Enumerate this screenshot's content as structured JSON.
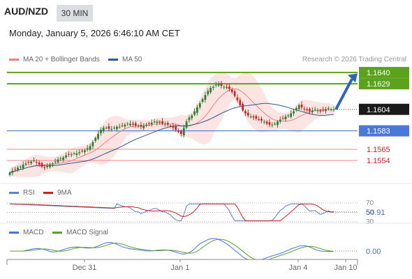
{
  "header": {
    "symbol": "AUD/NZD",
    "timeframe": "30 MIN",
    "datetime": "Monday, January 5, 2026 6:46:10 AM CET"
  },
  "legend": {
    "ma20_label": "MA 20 + Bollinger Bands",
    "ma50_label": "MA 50",
    "credit": "Research © 2026 Trading Central"
  },
  "colors": {
    "ma20": "#f08080",
    "ma50": "#2f5597",
    "band_fill": "#fbd9d6",
    "resistance": "#5aa31a",
    "pivot": "#4a78d8",
    "support": "#f08a8a",
    "bull": "#2e7d32",
    "bear": "#c62828",
    "rsi": "#5b7fd6",
    "rsi_ma": "#cc1f1f",
    "macd": "#4a73d9",
    "macd_signal": "#5aa02c",
    "arrow": "#2f65b5"
  },
  "chart_data": [
    {
      "type": "candlestick",
      "title": "AUD/NZD",
      "ylim": [
        1.1535,
        1.1642
      ],
      "x_ticks": [
        "Dec 31",
        "Jan 1",
        "Jan 4",
        "Jan 10"
      ],
      "levels": [
        {
          "value": 1.164,
          "label": "1.1640",
          "kind": "resistance"
        },
        {
          "value": 1.1629,
          "label": "1.1629",
          "kind": "resistance"
        },
        {
          "value": 1.1604,
          "label": "1.1604",
          "kind": "last"
        },
        {
          "value": 1.1583,
          "label": "1.1583",
          "kind": "pivot"
        },
        {
          "value": 1.1565,
          "label": "1.1565",
          "kind": "support"
        },
        {
          "value": 1.1554,
          "label": "1.1554",
          "kind": "support"
        }
      ],
      "close": [
        1.1542,
        1.1544,
        1.1545,
        1.1547,
        1.1548,
        1.155,
        1.1551,
        1.1552,
        1.1553,
        1.1554,
        1.1552,
        1.155,
        1.1548,
        1.1547,
        1.1549,
        1.155,
        1.1551,
        1.1553,
        1.1555,
        1.1556,
        1.1557,
        1.1559,
        1.156,
        1.156,
        1.1561,
        1.1561,
        1.1562,
        1.1563,
        1.1564,
        1.1566,
        1.1568,
        1.1572,
        1.1576,
        1.158,
        1.1584,
        1.1586,
        1.1586,
        1.1585,
        1.1585,
        1.1586,
        1.1587,
        1.1587,
        1.1588,
        1.1589,
        1.159,
        1.159,
        1.1589,
        1.1588,
        1.1588,
        1.1587,
        1.1588,
        1.1589,
        1.159,
        1.1591,
        1.1592,
        1.1592,
        1.1591,
        1.159,
        1.159,
        1.1589,
        1.1588,
        1.1586,
        1.1584,
        1.1582,
        1.158,
        1.1586,
        1.1592,
        1.1596,
        1.1598,
        1.1602,
        1.1606,
        1.161,
        1.1614,
        1.1618,
        1.1622,
        1.1625,
        1.1626,
        1.1628,
        1.1629,
        1.1627,
        1.1626,
        1.1625,
        1.1624,
        1.1621,
        1.1617,
        1.1613,
        1.1608,
        1.1603,
        1.16,
        1.1598,
        1.1597,
        1.1596,
        1.1595,
        1.1594,
        1.1593,
        1.1592,
        1.159,
        1.1589,
        1.1589,
        1.159,
        1.1592,
        1.1594,
        1.1595,
        1.1597,
        1.1598,
        1.16,
        1.1602,
        1.1605,
        1.1608,
        1.1606,
        1.1604,
        1.1603,
        1.1602,
        1.1603,
        1.1604,
        1.1603,
        1.1602,
        1.1603,
        1.1604,
        1.1605,
        1.1604,
        1.1604
      ],
      "rsi": {
        "ylim": [
          30,
          70
        ],
        "ref_lines": [
          70,
          50,
          30
        ],
        "last_value": "50.91",
        "series_labels": [
          "RSI",
          "9MA"
        ]
      },
      "macd": {
        "zero_label": "0.00",
        "series_labels": [
          "MACD",
          "MACD Signal"
        ]
      }
    }
  ]
}
